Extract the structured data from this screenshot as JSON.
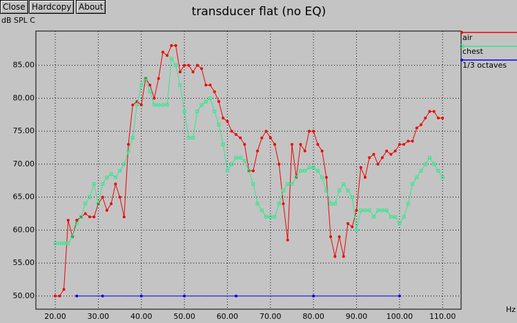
{
  "buttons": [
    "Close",
    "Hardcopy",
    "About"
  ],
  "chart_data": {
    "type": "line",
    "title": "transducer flat (no EQ)",
    "y_label": "dB SPL C",
    "x_label": "Hz",
    "xlim": [
      15.5,
      114.3
    ],
    "ylim": [
      48,
      90.2
    ],
    "grid": true,
    "xticks": [
      {
        "value": 20,
        "label": "20.00"
      },
      {
        "value": 30,
        "label": "30.00"
      },
      {
        "value": 40,
        "label": "40.00"
      },
      {
        "value": 50,
        "label": "50.00"
      },
      {
        "value": 60,
        "label": "60.00"
      },
      {
        "value": 70,
        "label": "70.00"
      },
      {
        "value": 80,
        "label": "80.00"
      },
      {
        "value": 90,
        "label": "90.00"
      },
      {
        "value": 100,
        "label": "100.00"
      },
      {
        "value": 110,
        "label": "110.00"
      }
    ],
    "yticks": [
      {
        "value": 50,
        "label": "50.00"
      },
      {
        "value": 55,
        "label": "55.00"
      },
      {
        "value": 60,
        "label": "60.00"
      },
      {
        "value": 65,
        "label": "65.00"
      },
      {
        "value": 70,
        "label": "70.00"
      },
      {
        "value": 75,
        "label": "75.00"
      },
      {
        "value": 80,
        "label": "80.00"
      },
      {
        "value": 85,
        "label": "85.00"
      }
    ],
    "series": [
      {
        "name": "air",
        "color": "#ee0000",
        "marker": "dot",
        "x": [
          20,
          21,
          22,
          23,
          24,
          25,
          26,
          27,
          28,
          29,
          30,
          31,
          32,
          33,
          34,
          35,
          36,
          37,
          38,
          39,
          40,
          41,
          42,
          43,
          44,
          45,
          46,
          47,
          48,
          49,
          50,
          51,
          52,
          53,
          54,
          55,
          56,
          57,
          58,
          59,
          60,
          61,
          62,
          63,
          64,
          65,
          66,
          67,
          68,
          69,
          70,
          71,
          72,
          73,
          74,
          75,
          76,
          77,
          78,
          79,
          80,
          81,
          82,
          83,
          84,
          85,
          86,
          87,
          88,
          89,
          90,
          91,
          92,
          93,
          94,
          95,
          96,
          97,
          98,
          99,
          100,
          101,
          102,
          103,
          104,
          105,
          106,
          107,
          108,
          109,
          110
        ],
        "values": [
          50,
          50,
          51,
          61.5,
          59,
          61.5,
          62,
          62.5,
          62,
          62,
          64,
          65,
          63,
          64,
          67,
          65,
          62,
          73,
          79,
          79.5,
          79,
          83,
          82,
          80,
          83,
          87,
          86.5,
          88,
          88,
          84,
          85,
          85,
          84,
          85,
          84.5,
          82,
          82,
          81,
          79.5,
          77,
          76.5,
          75,
          74.5,
          74,
          73,
          69,
          69,
          72,
          74,
          75,
          74,
          73,
          70,
          64,
          58.5,
          73,
          68,
          73,
          72,
          75,
          75,
          73,
          72,
          68,
          59,
          56,
          59,
          56,
          61,
          60.5,
          63,
          69.5,
          68,
          71,
          71.5,
          70,
          71,
          72,
          71.5,
          72,
          73,
          73,
          73.5,
          73.5,
          75.5,
          76,
          77,
          78,
          78,
          77,
          77
        ]
      },
      {
        "name": "chest",
        "color": "#30e890",
        "marker": "square",
        "x": [
          20,
          21,
          22,
          23,
          24,
          25,
          26,
          27,
          28,
          29,
          30,
          31,
          32,
          33,
          34,
          35,
          36,
          37,
          38,
          39,
          40,
          41,
          42,
          43,
          44,
          45,
          46,
          47,
          48,
          49,
          50,
          51,
          52,
          53,
          54,
          55,
          56,
          57,
          58,
          59,
          60,
          61,
          62,
          63,
          64,
          65,
          66,
          67,
          68,
          69,
          70,
          71,
          72,
          73,
          74,
          75,
          76,
          77,
          78,
          79,
          80,
          81,
          82,
          83,
          84,
          85,
          86,
          87,
          88,
          89,
          90,
          91,
          92,
          93,
          94,
          95,
          96,
          97,
          98,
          99,
          100,
          101,
          102,
          103,
          104,
          105,
          106,
          107,
          108,
          109,
          110
        ],
        "values": [
          58,
          58,
          58,
          58,
          59,
          61,
          62,
          64,
          65,
          67,
          64,
          67,
          68,
          68.5,
          68,
          69,
          70,
          72,
          74,
          79,
          82,
          83,
          81,
          79,
          79,
          79,
          79,
          86,
          85,
          82,
          78,
          74,
          74,
          78,
          79,
          79.5,
          80,
          78,
          76,
          73,
          69,
          70,
          71,
          71,
          70.5,
          69,
          67,
          64,
          63,
          62,
          62,
          62,
          64,
          66,
          67,
          67,
          68,
          69,
          69,
          69.5,
          69.5,
          69,
          68,
          66,
          64,
          64,
          66,
          67,
          66,
          65,
          60,
          63,
          63,
          63,
          62,
          63,
          63,
          63,
          62,
          62,
          61,
          62,
          64,
          67,
          68,
          69,
          70,
          71,
          70,
          69,
          68
        ]
      },
      {
        "name": "1/3 octaves",
        "color": "#0000ff",
        "marker": "dot",
        "x": [
          25,
          31,
          40,
          50,
          62,
          80,
          100
        ],
        "values": [
          50,
          50,
          50,
          50,
          50,
          50,
          50
        ]
      }
    ]
  }
}
